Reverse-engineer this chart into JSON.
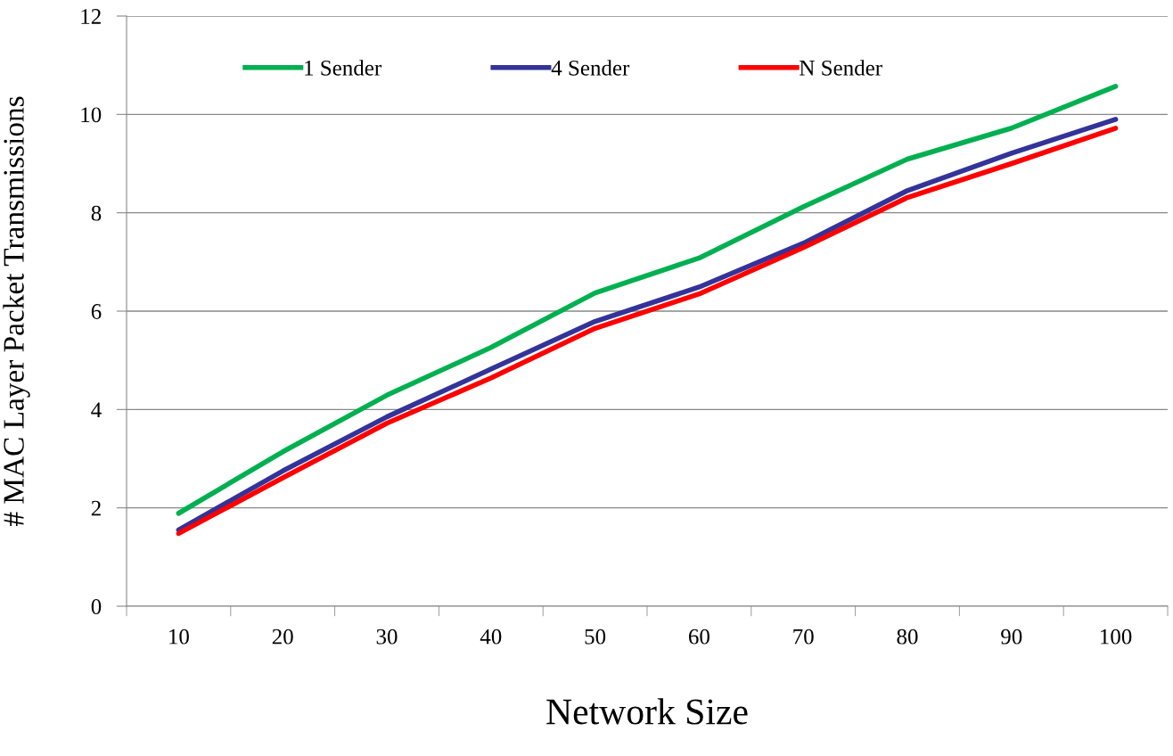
{
  "chart_data": {
    "type": "line",
    "xlabel": "Network Size",
    "ylabel": "# MAC Layer Packet Transmissions",
    "categories": [
      "10",
      "20",
      "30",
      "40",
      "50",
      "60",
      "70",
      "80",
      "90",
      "100"
    ],
    "series": [
      {
        "name": "1 Sender",
        "color": "#00b050",
        "values": [
          1.89,
          3.14,
          4.29,
          5.26,
          6.37,
          7.08,
          8.12,
          9.09,
          9.72,
          10.57
        ]
      },
      {
        "name": "4 Sender",
        "color": "#333399",
        "values": [
          1.55,
          2.75,
          3.85,
          4.82,
          5.79,
          6.49,
          7.38,
          8.45,
          9.21,
          9.9
        ]
      },
      {
        "name": "N Sender",
        "color": "#ff0000",
        "values": [
          1.48,
          2.61,
          3.72,
          4.64,
          5.65,
          6.35,
          7.29,
          8.31,
          9.0,
          9.72
        ]
      }
    ],
    "ylim": [
      0,
      12
    ],
    "yticks": [
      0,
      2,
      4,
      6,
      8,
      10,
      12
    ],
    "grid": "y",
    "legend": "top",
    "marker": "none",
    "line_style": "solid"
  }
}
